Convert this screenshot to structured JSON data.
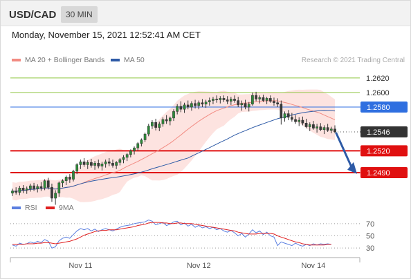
{
  "header": {
    "symbol": "USD/CAD",
    "timeframe": "30 MIN"
  },
  "timestamp": "Monday, November 15, 2021 12:52:41 AM CET",
  "legend": {
    "ma_bb": {
      "label": "MA 20 + Bollinger Bands",
      "color": "#f28b82"
    },
    "ma50": {
      "label": "MA 50",
      "color": "#2d5aa6"
    }
  },
  "credit": "Research © 2021 Trading Central",
  "rsi_legend": {
    "rsi": {
      "label": "RSI",
      "color": "#5b7fe0"
    },
    "ma9": {
      "label": "9MA",
      "color": "#e02020"
    }
  },
  "chart_data": {
    "type": "candlestick",
    "price_axis": {
      "min": 1.2455,
      "max": 1.2635
    },
    "last_price": {
      "value": 1.2546,
      "label": "1.2546",
      "color": "#333333"
    },
    "levels": [
      {
        "value": 1.262,
        "label": "1.2620",
        "role": "resistance",
        "color": "#8dc63f"
      },
      {
        "value": 1.26,
        "label": "1.2600",
        "role": "resistance",
        "color": "#8dc63f"
      },
      {
        "value": 1.258,
        "label": "1.2580",
        "role": "pivot",
        "color": "#2f6fe0"
      },
      {
        "value": 1.252,
        "label": "1.2520",
        "role": "support",
        "color": "#e01010"
      },
      {
        "value": 1.249,
        "label": "1.2490",
        "role": "support",
        "color": "#e01010"
      }
    ],
    "forecast_arrow": {
      "from": 1.2546,
      "to": 1.2495,
      "direction": "down",
      "color": "#2d5aa6"
    },
    "x_ticks": [
      {
        "label": "Nov 11",
        "index": 19
      },
      {
        "label": "Nov 12",
        "index": 52
      },
      {
        "label": "Nov 14",
        "index": 84
      }
    ],
    "candles": [
      [
        1.2462,
        1.2468,
        1.2458,
        1.2465
      ],
      [
        1.2465,
        1.247,
        1.246,
        1.2463
      ],
      [
        1.2463,
        1.2472,
        1.2459,
        1.2469
      ],
      [
        1.2469,
        1.2473,
        1.2462,
        1.2466
      ],
      [
        1.2466,
        1.2471,
        1.2461,
        1.2468
      ],
      [
        1.2468,
        1.2475,
        1.2464,
        1.2472
      ],
      [
        1.2472,
        1.2476,
        1.2465,
        1.2468
      ],
      [
        1.2468,
        1.2474,
        1.2463,
        1.2471
      ],
      [
        1.2471,
        1.2477,
        1.2465,
        1.2469
      ],
      [
        1.2469,
        1.2481,
        1.2466,
        1.2479
      ],
      [
        1.2479,
        1.2483,
        1.2467,
        1.247
      ],
      [
        1.247,
        1.2475,
        1.245,
        1.2455
      ],
      [
        1.2455,
        1.2466,
        1.2446,
        1.2462
      ],
      [
        1.2462,
        1.2478,
        1.2457,
        1.2476
      ],
      [
        1.2476,
        1.2481,
        1.247,
        1.2479
      ],
      [
        1.2479,
        1.2486,
        1.2473,
        1.2484
      ],
      [
        1.2484,
        1.2488,
        1.2476,
        1.2481
      ],
      [
        1.2481,
        1.2494,
        1.2478,
        1.2492
      ],
      [
        1.2492,
        1.2503,
        1.2488,
        1.2501
      ],
      [
        1.2501,
        1.2508,
        1.2495,
        1.2505
      ],
      [
        1.2505,
        1.251,
        1.2498,
        1.2501
      ],
      [
        1.2501,
        1.2507,
        1.2495,
        1.2504
      ],
      [
        1.2504,
        1.2509,
        1.2497,
        1.25
      ],
      [
        1.25,
        1.2506,
        1.2494,
        1.2503
      ],
      [
        1.2503,
        1.2508,
        1.2496,
        1.2499
      ],
      [
        1.2499,
        1.2505,
        1.2493,
        1.2502
      ],
      [
        1.2502,
        1.2508,
        1.2497,
        1.2505
      ],
      [
        1.2505,
        1.251,
        1.2499,
        1.2503
      ],
      [
        1.2503,
        1.2508,
        1.2497,
        1.25
      ],
      [
        1.25,
        1.2506,
        1.2495,
        1.2504
      ],
      [
        1.2504,
        1.251,
        1.25,
        1.2508
      ],
      [
        1.2508,
        1.2514,
        1.2503,
        1.2511
      ],
      [
        1.2511,
        1.2517,
        1.2506,
        1.2515
      ],
      [
        1.2515,
        1.2522,
        1.2511,
        1.252
      ],
      [
        1.252,
        1.2526,
        1.2515,
        1.2524
      ],
      [
        1.2524,
        1.2532,
        1.252,
        1.253
      ],
      [
        1.253,
        1.2537,
        1.2526,
        1.2535
      ],
      [
        1.2535,
        1.2545,
        1.2532,
        1.2543
      ],
      [
        1.2543,
        1.2557,
        1.254,
        1.2554
      ],
      [
        1.2554,
        1.2562,
        1.255,
        1.2559
      ],
      [
        1.2559,
        1.2564,
        1.2548,
        1.2552
      ],
      [
        1.2552,
        1.256,
        1.2547,
        1.2557
      ],
      [
        1.2557,
        1.2566,
        1.2553,
        1.2563
      ],
      [
        1.2563,
        1.2569,
        1.2557,
        1.2561
      ],
      [
        1.2561,
        1.2567,
        1.2555,
        1.2565
      ],
      [
        1.2565,
        1.2577,
        1.2561,
        1.2574
      ],
      [
        1.2574,
        1.2584,
        1.257,
        1.2581
      ],
      [
        1.2581,
        1.2588,
        1.2573,
        1.2577
      ],
      [
        1.2577,
        1.2586,
        1.2572,
        1.2583
      ],
      [
        1.2583,
        1.2589,
        1.2577,
        1.258
      ],
      [
        1.258,
        1.2588,
        1.2575,
        1.2585
      ],
      [
        1.2585,
        1.259,
        1.2578,
        1.2582
      ],
      [
        1.2582,
        1.2589,
        1.2577,
        1.2586
      ],
      [
        1.2586,
        1.2591,
        1.258,
        1.2584
      ],
      [
        1.2584,
        1.259,
        1.2579,
        1.2587
      ],
      [
        1.2587,
        1.2593,
        1.2582,
        1.2589
      ],
      [
        1.2589,
        1.2594,
        1.2584,
        1.2591
      ],
      [
        1.2591,
        1.2596,
        1.2586,
        1.259
      ],
      [
        1.259,
        1.2595,
        1.2585,
        1.2592
      ],
      [
        1.2592,
        1.2596,
        1.2587,
        1.259
      ],
      [
        1.259,
        1.2595,
        1.2584,
        1.2588
      ],
      [
        1.2588,
        1.2594,
        1.2583,
        1.2591
      ],
      [
        1.2591,
        1.2596,
        1.2586,
        1.2589
      ],
      [
        1.2589,
        1.2594,
        1.258,
        1.2583
      ],
      [
        1.2583,
        1.2589,
        1.2575,
        1.2585
      ],
      [
        1.2585,
        1.259,
        1.2577,
        1.258
      ],
      [
        1.258,
        1.2587,
        1.2574,
        1.2584
      ],
      [
        1.2584,
        1.26,
        1.2582,
        1.2596
      ],
      [
        1.2596,
        1.2601,
        1.2588,
        1.2591
      ],
      [
        1.2591,
        1.2596,
        1.2585,
        1.2593
      ],
      [
        1.2593,
        1.2597,
        1.2587,
        1.2589
      ],
      [
        1.2589,
        1.2594,
        1.2584,
        1.2592
      ],
      [
        1.2592,
        1.2596,
        1.2586,
        1.2588
      ],
      [
        1.2588,
        1.2593,
        1.2582,
        1.2586
      ],
      [
        1.2586,
        1.2592,
        1.258,
        1.2584
      ],
      [
        1.2584,
        1.2589,
        1.2556,
        1.2565
      ],
      [
        1.2565,
        1.2574,
        1.256,
        1.2571
      ],
      [
        1.2571,
        1.2576,
        1.2562,
        1.2566
      ],
      [
        1.2566,
        1.2572,
        1.256,
        1.2563
      ],
      [
        1.2563,
        1.2569,
        1.2557,
        1.256
      ],
      [
        1.256,
        1.2566,
        1.2554,
        1.2562
      ],
      [
        1.2562,
        1.2567,
        1.2555,
        1.2558
      ],
      [
        1.2558,
        1.2564,
        1.2551,
        1.2553
      ],
      [
        1.2553,
        1.2559,
        1.2547,
        1.2556
      ],
      [
        1.2556,
        1.2561,
        1.2549,
        1.2551
      ],
      [
        1.2551,
        1.2557,
        1.2545,
        1.2553
      ],
      [
        1.2553,
        1.2558,
        1.2547,
        1.2549
      ],
      [
        1.2549,
        1.2555,
        1.2543,
        1.2552
      ],
      [
        1.2552,
        1.2557,
        1.2546,
        1.2548
      ],
      [
        1.2548,
        1.2553,
        1.2544,
        1.255
      ],
      [
        1.255,
        1.2555,
        1.2544,
        1.2546
      ]
    ],
    "rsi": {
      "min": 20,
      "max": 80,
      "ticks": [
        70,
        50,
        30
      ],
      "rsi_values": [
        35,
        33,
        38,
        36,
        37,
        40,
        38,
        41,
        39,
        44,
        41,
        30,
        32,
        42,
        46,
        48,
        46,
        52,
        58,
        62,
        60,
        62,
        58,
        61,
        57,
        60,
        62,
        60,
        58,
        61,
        64,
        66,
        67,
        68,
        70,
        71,
        72,
        73,
        76,
        74,
        68,
        70,
        72,
        67,
        69,
        73,
        74,
        68,
        71,
        66,
        69,
        64,
        67,
        63,
        65,
        62,
        64,
        60,
        62,
        58,
        56,
        59,
        55,
        50,
        54,
        48,
        53,
        60,
        55,
        58,
        52,
        56,
        50,
        48,
        34,
        40,
        38,
        36,
        34,
        38,
        35,
        33,
        36,
        34,
        37,
        35,
        37,
        36,
        37,
        36
      ],
      "ma9_values": [
        36,
        36,
        36,
        36,
        37,
        37,
        37,
        38,
        38,
        39,
        39,
        38,
        37,
        38,
        39,
        40,
        41,
        43,
        45,
        48,
        51,
        53,
        55,
        57,
        58,
        59,
        59,
        60,
        60,
        60,
        61,
        62,
        63,
        64,
        65,
        67,
        68,
        69,
        71,
        72,
        72,
        72,
        71,
        71,
        70,
        70,
        71,
        71,
        70,
        70,
        70,
        69,
        68,
        67,
        66,
        65,
        64,
        63,
        62,
        61,
        60,
        59,
        58,
        56,
        55,
        54,
        53,
        53,
        53,
        54,
        54,
        54,
        54,
        53,
        50,
        48,
        46,
        44,
        42,
        40,
        39,
        37,
        36,
        35,
        35,
        35,
        35,
        35,
        36,
        36
      ]
    }
  }
}
